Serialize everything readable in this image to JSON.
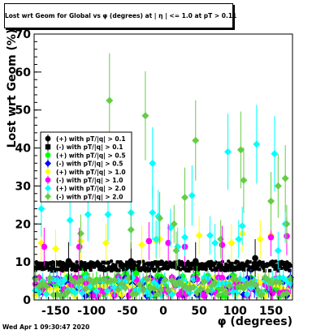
{
  "chart_data": {
    "type": "scatter",
    "title": "Lost wrt Geom for Global vs φ (degrees) at | η | <= 1.0 at pT > 0.11",
    "xlabel": "φ (degrees)",
    "ylabel": "Lost wrt Geom (%)",
    "xlim": [
      -180,
      180
    ],
    "ylim": [
      0,
      70
    ],
    "x_ticks": [
      "-150",
      "-100",
      "-50",
      "0",
      "50",
      "100",
      "150"
    ],
    "y_ticks": [
      "0",
      "10",
      "20",
      "30",
      "40",
      "50",
      "60",
      "70"
    ],
    "legend_position": "middle-left",
    "grid": false,
    "datestamp": "Wed Apr  1 09:30:47 2020",
    "series": [
      {
        "name": "(+) with pT/|q| > 0.1",
        "color": "#000000",
        "marker": "circle",
        "band": [
          7.8,
          10.2
        ],
        "points": [
          [
            -132,
            10.2
          ],
          [
            -45,
            10.2
          ],
          [
            45,
            10.2
          ],
          [
            128,
            11.0
          ]
        ]
      },
      {
        "name": "(-) with pT/|q| > 0.1",
        "color": "#000000",
        "marker": "square",
        "band": [
          7.6,
          10.0
        ],
        "points": []
      },
      {
        "name": "(+) with pT/|q| > 0.5",
        "color": "#00ff00",
        "marker": "circle",
        "band": [
          1,
          7
        ],
        "points": []
      },
      {
        "name": "(-) with pT/|q| > 0.5",
        "color": "#0000ff",
        "marker": "diamond",
        "band": [
          1,
          6
        ],
        "points": []
      },
      {
        "name": "(+) with pT/|q| > 1.0",
        "color": "#ffff00",
        "marker": "diamond",
        "band": [
          1,
          6
        ],
        "points": [
          [
            -170,
            15
          ],
          [
            -150,
            13.5
          ],
          [
            -115,
            15.5
          ],
          [
            -80,
            15
          ],
          [
            -30,
            14.5
          ],
          [
            -10,
            15.5
          ],
          [
            -5,
            16
          ],
          [
            50,
            17
          ],
          [
            95,
            15
          ],
          [
            110,
            17.5
          ],
          [
            135,
            16
          ],
          [
            150,
            17
          ]
        ]
      },
      {
        "name": "(-) with pT/|q| > 1.0",
        "color": "#ff00ff",
        "marker": "circle",
        "band": [
          1,
          6
        ],
        "points": [
          [
            -166,
            14
          ],
          [
            -117,
            14
          ],
          [
            -20,
            15.5
          ],
          [
            7,
            15
          ],
          [
            30,
            14
          ],
          [
            82,
            14.5
          ],
          [
            150,
            16.5
          ],
          [
            172,
            16.8
          ]
        ]
      },
      {
        "name": "(+) with pT/|q| > 2.0",
        "color": "#00ffff",
        "marker": "diamond",
        "band": [
          1,
          6
        ],
        "points": [
          [
            -170,
            24
          ],
          [
            -130,
            21
          ],
          [
            -105,
            22.5
          ],
          [
            -77,
            22.5
          ],
          [
            -45,
            23
          ],
          [
            -15,
            36
          ],
          [
            -15,
            23
          ],
          [
            -7,
            22
          ],
          [
            -10,
            16
          ],
          [
            10,
            19
          ],
          [
            20,
            14
          ],
          [
            30,
            16.5
          ],
          [
            40,
            27.5
          ],
          [
            65,
            17
          ],
          [
            90,
            39
          ],
          [
            105,
            16
          ],
          [
            110,
            19.5
          ],
          [
            130,
            41
          ],
          [
            155,
            38.5
          ],
          [
            170,
            20
          ],
          [
            160,
            13
          ],
          [
            72,
            15
          ]
        ]
      },
      {
        "name": "(-) with pT/|q| > 2.0",
        "color": "#66cc44",
        "marker": "diamond",
        "band": [
          1,
          6
        ],
        "points": [
          [
            -115,
            17.5
          ],
          [
            -75,
            52.5
          ],
          [
            -45,
            18.5
          ],
          [
            -25,
            48.5
          ],
          [
            -5,
            21.5
          ],
          [
            15,
            20
          ],
          [
            18,
            13
          ],
          [
            30,
            27
          ],
          [
            45,
            42
          ],
          [
            80,
            16
          ],
          [
            108,
            39.5
          ],
          [
            112,
            31.5
          ],
          [
            150,
            26
          ],
          [
            160,
            30
          ],
          [
            170,
            32
          ],
          [
            172,
            20
          ]
        ]
      }
    ]
  }
}
